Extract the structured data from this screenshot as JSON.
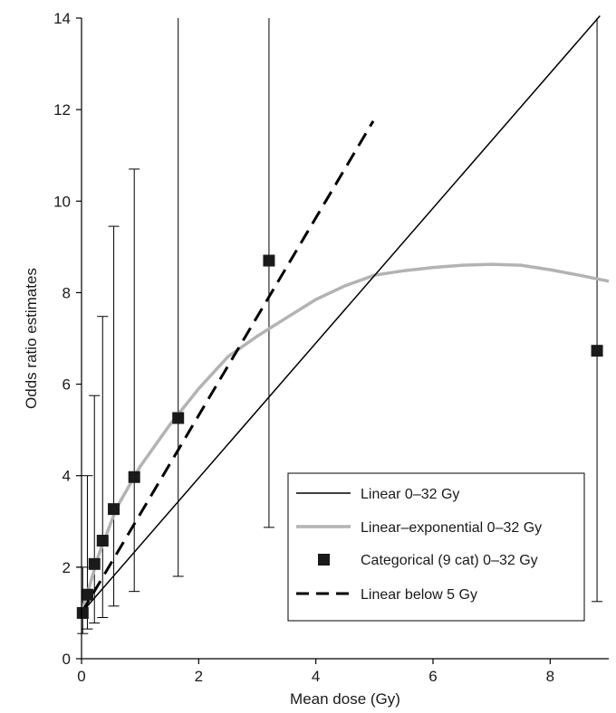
{
  "chart_data": {
    "type": "line",
    "xlabel": "Mean dose (Gy)",
    "ylabel": "Odds ratio estimates",
    "xlim": [
      0,
      9
    ],
    "ylim": [
      0,
      14
    ],
    "x_ticks": [
      0,
      2,
      4,
      6,
      8
    ],
    "y_ticks": [
      0,
      2,
      4,
      6,
      8,
      10,
      12,
      14
    ],
    "grid": false,
    "legend_position": "bottom-right",
    "series": [
      {
        "name": "Linear 0–32 Gy",
        "kind": "line",
        "color": "#000000",
        "style": "solid",
        "x": [
          0,
          8.85
        ],
        "y": [
          1.0,
          14.05
        ]
      },
      {
        "name": "Linear–exponential 0–32 Gy",
        "kind": "line",
        "color": "#b3b3b3",
        "style": "solid",
        "x": [
          0,
          0.3,
          0.6,
          1.0,
          1.5,
          2.0,
          2.5,
          3.0,
          3.5,
          4.0,
          4.5,
          5.0,
          5.5,
          6.0,
          6.5,
          7.0,
          7.5,
          8.0,
          8.5,
          9.0
        ],
        "y": [
          1.0,
          2.3,
          3.3,
          4.2,
          5.1,
          5.9,
          6.6,
          7.05,
          7.45,
          7.85,
          8.15,
          8.38,
          8.48,
          8.55,
          8.6,
          8.62,
          8.6,
          8.5,
          8.38,
          8.25
        ]
      },
      {
        "name": "Categorical (9 cat) 0–32 Gy",
        "kind": "points",
        "color": "#1a1a1a",
        "marker": "square",
        "points": [
          {
            "x": 0.02,
            "y": 1.0,
            "lo": 0.55,
            "hi": 2.0
          },
          {
            "x": 0.1,
            "y": 1.4,
            "lo": 0.65,
            "hi": 4.0
          },
          {
            "x": 0.22,
            "y": 2.07,
            "lo": 0.78,
            "hi": 5.75
          },
          {
            "x": 0.36,
            "y": 2.58,
            "lo": 0.9,
            "hi": 7.48
          },
          {
            "x": 0.55,
            "y": 3.27,
            "lo": 1.15,
            "hi": 9.45
          },
          {
            "x": 0.9,
            "y": 3.97,
            "lo": 1.47,
            "hi": 10.7
          },
          {
            "x": 1.65,
            "y": 5.26,
            "lo": 1.8,
            "hi": 14
          },
          {
            "x": 3.2,
            "y": 8.7,
            "lo": 2.87,
            "hi": 14
          },
          {
            "x": 8.8,
            "y": 6.73,
            "lo": 1.25,
            "hi": 14
          }
        ]
      },
      {
        "name": "Linear below 5 Gy",
        "kind": "line",
        "color": "#000000",
        "style": "dashed",
        "x": [
          0,
          4.98
        ],
        "y": [
          1.0,
          11.75
        ]
      }
    ]
  }
}
